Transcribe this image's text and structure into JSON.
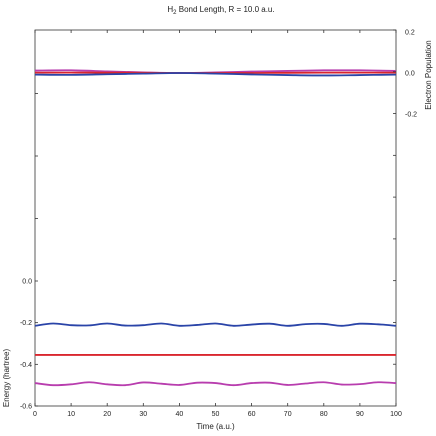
{
  "chart_data": {
    "type": "line",
    "title_prefix": "H",
    "title_subscript": "2",
    "title_rest": " Bond Length, R = 10.0 a.u.",
    "xlabel": "Time (a.u.)",
    "ylabel_left": "Energy (hartree)",
    "ylabel_right": "Electron Population",
    "xlim": [
      0,
      100
    ],
    "ylim_left": [
      -0.6,
      0.0
    ],
    "ylim_right": [
      -0.2,
      0.2
    ],
    "x_ticks": [
      "0",
      "10",
      "20",
      "30",
      "40",
      "50",
      "60",
      "70",
      "80",
      "90",
      "100"
    ],
    "y_left_ticks": [
      {
        "value": 0.0,
        "label": "0.0"
      },
      {
        "value": -0.2,
        "label": "-0.2"
      },
      {
        "value": -0.4,
        "label": "-0.4"
      },
      {
        "value": -0.6,
        "label": "-0.6"
      }
    ],
    "y_right_ticks": [
      {
        "value": 0.2,
        "label": "0.2"
      },
      {
        "value": 0.0,
        "label": "0.0"
      },
      {
        "value": -0.2,
        "label": "-0.2"
      }
    ],
    "grid": false,
    "series": [
      {
        "axis": "left",
        "color": "#2a44a8",
        "x": [
          0,
          5,
          10,
          15,
          20,
          25,
          30,
          35,
          40,
          45,
          50,
          55,
          60,
          65,
          70,
          75,
          80,
          85,
          90,
          95,
          100
        ],
        "y": [
          -0.215,
          -0.204,
          -0.212,
          -0.213,
          -0.204,
          -0.214,
          -0.212,
          -0.204,
          -0.215,
          -0.211,
          -0.204,
          -0.215,
          -0.209,
          -0.205,
          -0.215,
          -0.207,
          -0.206,
          -0.215,
          -0.205,
          -0.208,
          -0.215
        ]
      },
      {
        "axis": "left",
        "color": "#d9262e",
        "x": [
          0,
          100
        ],
        "y": [
          -0.355,
          -0.355
        ]
      },
      {
        "axis": "left",
        "color": "#b83dae",
        "x": [
          0,
          5,
          10,
          15,
          20,
          25,
          30,
          35,
          40,
          45,
          50,
          55,
          60,
          65,
          70,
          75,
          80,
          85,
          90,
          95,
          100
        ],
        "y": [
          -0.49,
          -0.5,
          -0.496,
          -0.486,
          -0.496,
          -0.5,
          -0.487,
          -0.493,
          -0.499,
          -0.488,
          -0.49,
          -0.5,
          -0.49,
          -0.488,
          -0.499,
          -0.492,
          -0.486,
          -0.497,
          -0.495,
          -0.486,
          -0.49
        ]
      },
      {
        "axis": "right",
        "color": "#b83dae",
        "x": [
          0,
          10,
          20,
          30,
          40,
          50,
          60,
          70,
          80,
          90,
          100
        ],
        "y": [
          0.012,
          0.013,
          0.008,
          0.003,
          0.0,
          0.003,
          0.007,
          0.01,
          0.013,
          0.013,
          0.01
        ]
      },
      {
        "axis": "right",
        "color": "#d9262e",
        "x": [
          0,
          10,
          20,
          30,
          40,
          50,
          60,
          70,
          80,
          90,
          100
        ],
        "y": [
          0.002,
          0.002,
          0.002,
          0.001,
          0.0,
          0.0,
          0.0,
          0.001,
          0.002,
          0.002,
          0.002
        ]
      },
      {
        "axis": "right",
        "color": "#2a44a8",
        "x": [
          0,
          10,
          20,
          30,
          40,
          50,
          60,
          70,
          80,
          90,
          100
        ],
        "y": [
          -0.008,
          -0.009,
          -0.006,
          -0.003,
          0.0,
          -0.003,
          -0.007,
          -0.01,
          -0.012,
          -0.01,
          -0.008
        ]
      }
    ]
  }
}
